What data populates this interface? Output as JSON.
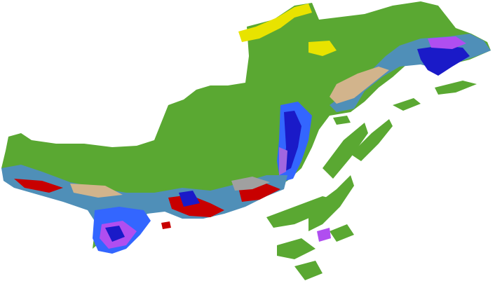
{
  "map": {
    "background": "#ffffff",
    "palette": {
      "forest": "#5aa832",
      "grassland": "#e8e300",
      "shrub": "#d2b48c",
      "builtup": "#c80000",
      "bare": "#a0a0a0",
      "water": "#1a1ac8",
      "wetland": "#3366ff",
      "marsh": "#a066e0",
      "farmland": "#4f8fb8",
      "saltpan": "#b04ef0"
    }
  }
}
